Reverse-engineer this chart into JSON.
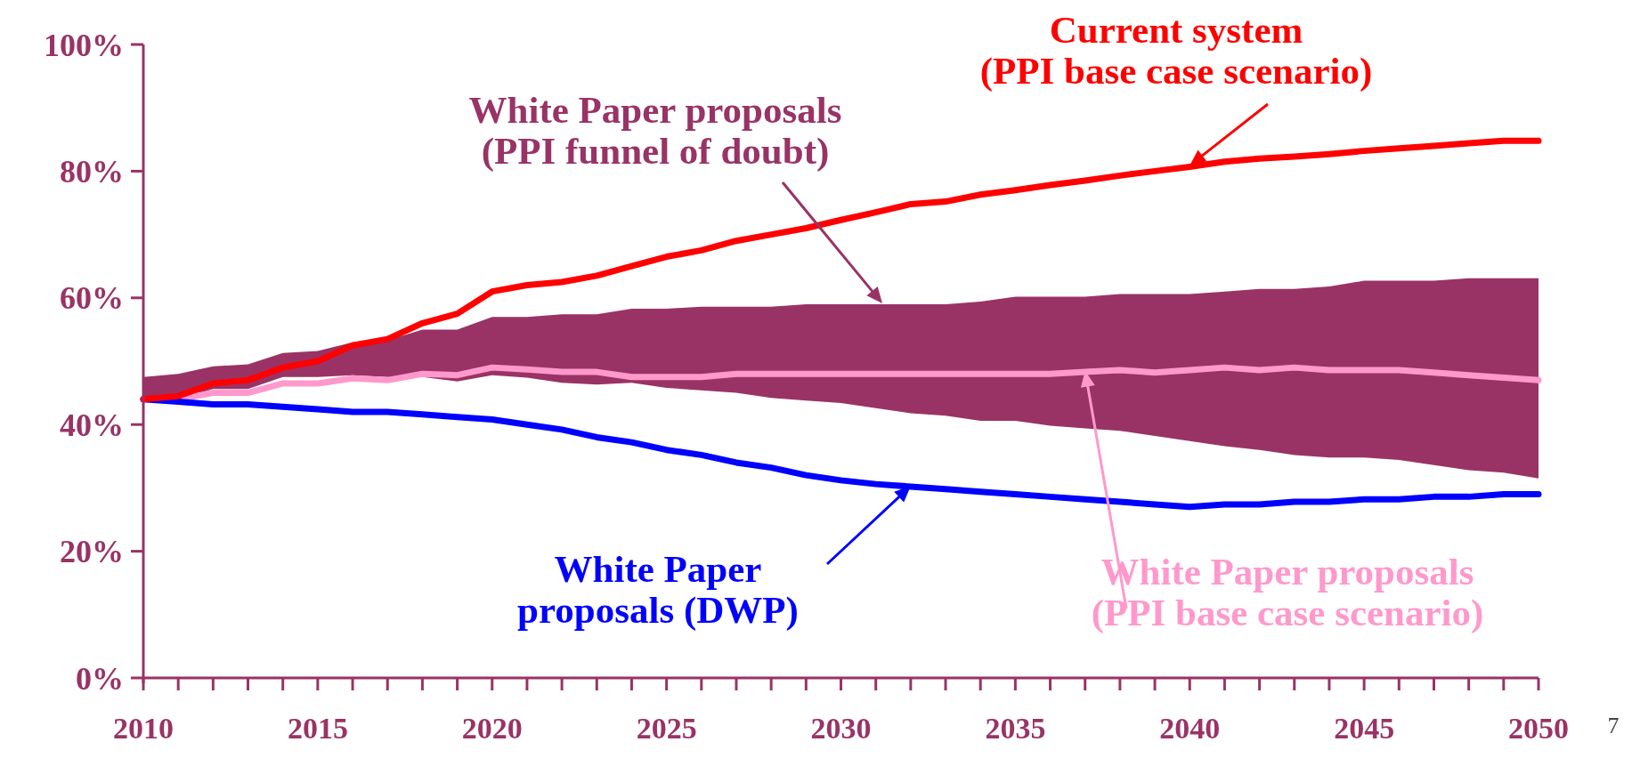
{
  "chart_data": {
    "type": "line",
    "x": [
      2010,
      2011,
      2012,
      2013,
      2014,
      2015,
      2016,
      2017,
      2018,
      2019,
      2020,
      2021,
      2022,
      2023,
      2024,
      2025,
      2026,
      2027,
      2028,
      2029,
      2030,
      2031,
      2032,
      2033,
      2034,
      2035,
      2036,
      2037,
      2038,
      2039,
      2040,
      2041,
      2042,
      2043,
      2044,
      2045,
      2046,
      2047,
      2048,
      2049,
      2050
    ],
    "xlim": [
      2010,
      2050
    ],
    "xticks": [
      2010,
      {
        "value": 2011,
        "label": null
      },
      {
        "value": 2012,
        "label": null
      },
      {
        "value": 2013,
        "label": null
      },
      {
        "value": 2014,
        "label": null
      },
      2015,
      {
        "value": 2016,
        "label": null
      },
      {
        "value": 2017,
        "label": null
      },
      {
        "value": 2018,
        "label": null
      },
      {
        "value": 2019,
        "label": null
      },
      2020,
      {
        "value": 2021,
        "label": null
      },
      {
        "value": 2022,
        "label": null
      },
      {
        "value": 2023,
        "label": null
      },
      {
        "value": 2024,
        "label": null
      },
      2025,
      {
        "value": 2026,
        "label": null
      },
      {
        "value": 2027,
        "label": null
      },
      {
        "value": 2028,
        "label": null
      },
      {
        "value": 2029,
        "label": null
      },
      2030,
      {
        "value": 2031,
        "label": null
      },
      {
        "value": 2032,
        "label": null
      },
      {
        "value": 2033,
        "label": null
      },
      {
        "value": 2034,
        "label": null
      },
      2035,
      {
        "value": 2036,
        "label": null
      },
      {
        "value": 2037,
        "label": null
      },
      {
        "value": 2038,
        "label": null
      },
      {
        "value": 2039,
        "label": null
      },
      2040,
      {
        "value": 2041,
        "label": null
      },
      {
        "value": 2042,
        "label": null
      },
      {
        "value": 2043,
        "label": null
      },
      {
        "value": 2044,
        "label": null
      },
      2045,
      {
        "value": 2046,
        "label": null
      },
      {
        "value": 2047,
        "label": null
      },
      {
        "value": 2048,
        "label": null
      },
      {
        "value": 2049,
        "label": null
      },
      2050
    ],
    "ylim": [
      0,
      100
    ],
    "yticks": [
      {
        "value": 0,
        "label": "0%"
      },
      {
        "value": 20,
        "label": "20%"
      },
      {
        "value": 40,
        "label": "40%"
      },
      {
        "value": 60,
        "label": "60%"
      },
      {
        "value": 80,
        "label": "80%"
      },
      {
        "value": 100,
        "label": "100%"
      }
    ],
    "grid": false,
    "marker": "none",
    "line_style": "solid",
    "annotations": [
      "7",
      "White Paper proposals\n(PPI funnel of doubt)"
    ],
    "series": [
      {
        "name": "White Paper proposals\n(PPI base case scenario)",
        "color": "#ff99cc",
        "upper": [
          47.5,
          48,
          49.2,
          49.5,
          51.3,
          51.6,
          53,
          53.3,
          55,
          55,
          57,
          57,
          57.4,
          57.4,
          58.3,
          58.3,
          58.6,
          58.6,
          58.6,
          59,
          59,
          59,
          59,
          59,
          59.4,
          60.2,
          60.2,
          60.2,
          60.6,
          60.6,
          60.6,
          61,
          61.4,
          61.4,
          61.8,
          62.7,
          62.7,
          62.7,
          63.1,
          63.1,
          63.1
        ],
        "lower": [
          43.8,
          44,
          45.6,
          45.6,
          47.5,
          47.5,
          47.8,
          47.5,
          47.5,
          46.8,
          47.8,
          47.4,
          46.6,
          46.3,
          46.6,
          45.8,
          45.4,
          45,
          44.2,
          43.8,
          43.4,
          42.6,
          41.8,
          41.4,
          40.6,
          40.6,
          39.8,
          39.4,
          39,
          38.2,
          37.4,
          36.6,
          36,
          35.2,
          34.8,
          34.8,
          34.4,
          33.6,
          32.8,
          32.4,
          31.5
        ],
        "values": [
          44,
          44,
          45,
          45,
          46.5,
          46.5,
          47.3,
          47,
          48,
          47.8,
          49,
          48.7,
          48.3,
          48.3,
          47.5,
          47.5,
          47.5,
          48,
          48,
          48,
          48,
          48,
          48,
          48,
          48,
          48,
          48,
          48.3,
          48.6,
          48.2,
          48.6,
          49,
          48.6,
          49,
          48.6,
          48.6,
          48.6,
          48.2,
          47.8,
          47.4,
          47
        ]
      },
      {
        "name": "White Paper\nproposals (DWP)",
        "color": "#0000ff",
        "values": [
          44,
          43.6,
          43.2,
          43.2,
          42.8,
          42.4,
          42,
          42,
          41.6,
          41.2,
          40.8,
          40,
          39.2,
          38,
          37.2,
          36,
          35.2,
          34,
          33.2,
          32,
          31.2,
          30.6,
          30.2,
          29.8,
          29.4,
          29,
          28.6,
          28.2,
          27.8,
          27.4,
          27,
          27.4,
          27.4,
          27.8,
          27.8,
          28.2,
          28.2,
          28.6,
          28.6,
          29,
          29
        ]
      },
      {
        "name": "Current system\n(PPI base case scenario)",
        "color": "#ff0000",
        "values": [
          44,
          44.5,
          46.5,
          47,
          49,
          50,
          52.5,
          53.5,
          56,
          57.5,
          61,
          62,
          62.5,
          63.5,
          65,
          66.5,
          67.5,
          69,
          70,
          71,
          72.3,
          73.5,
          74.8,
          75.2,
          76.3,
          77,
          77.8,
          78.5,
          79.3,
          80,
          80.7,
          81.5,
          82,
          82.3,
          82.7,
          83.2,
          83.6,
          84,
          84.4,
          84.8,
          84.8
        ]
      }
    ]
  }
}
